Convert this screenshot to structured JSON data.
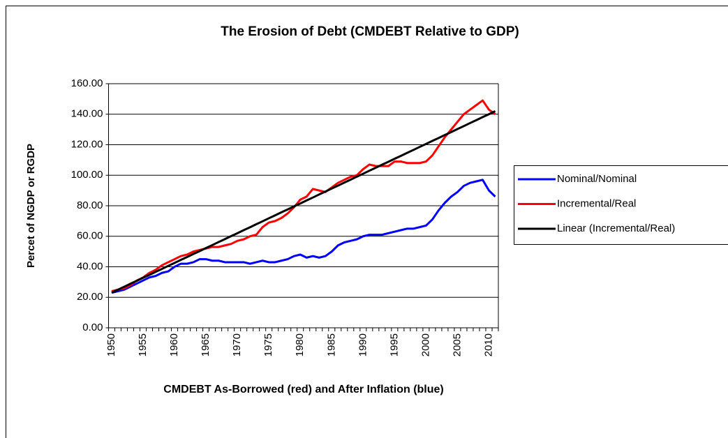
{
  "chart_data": {
    "type": "line",
    "title": "The Erosion of Debt (CMDEBT Relative to GDP)",
    "x_label": "CMDEBT As-Borrowed (red) and After Inflation (blue)",
    "y_label": "Percet of NGDP or RGDP",
    "categories": [
      "1950",
      null,
      null,
      null,
      null,
      "1955",
      null,
      null,
      null,
      null,
      "1960",
      null,
      null,
      null,
      null,
      "1965",
      null,
      null,
      null,
      null,
      "1970",
      null,
      null,
      null,
      null,
      "1975",
      null,
      null,
      null,
      null,
      "1980",
      null,
      null,
      null,
      null,
      "1985",
      null,
      null,
      null,
      null,
      "1990",
      null,
      null,
      null,
      null,
      "1995",
      null,
      null,
      null,
      null,
      "2000",
      null,
      null,
      null,
      null,
      "2005",
      null,
      null,
      null,
      null,
      "2010",
      null
    ],
    "ylim": [
      0,
      160
    ],
    "yticks": [
      {
        "value": 0,
        "label": "0.00"
      },
      {
        "value": 20,
        "label": "20.00"
      },
      {
        "value": 40,
        "label": "40.00"
      },
      {
        "value": 60,
        "label": "60.00"
      },
      {
        "value": 80,
        "label": "80.00"
      },
      {
        "value": 100,
        "label": "100.00"
      },
      {
        "value": 120,
        "label": "120.00"
      },
      {
        "value": 140,
        "label": "140.00"
      },
      {
        "value": 160,
        "label": "160.00"
      }
    ],
    "grid": true,
    "legend": "right",
    "series": [
      {
        "name": "Nominal/Nominal",
        "color": "#0000ff",
        "values": [
          23,
          24,
          25,
          27,
          29,
          31,
          33,
          34,
          36,
          37,
          40,
          42,
          42,
          43,
          45,
          45,
          44,
          44,
          43,
          43,
          43,
          43,
          42,
          43,
          44,
          43,
          43,
          44,
          45,
          47,
          48,
          46,
          47,
          46,
          47,
          50,
          54,
          56,
          57,
          58,
          60,
          61,
          61,
          61,
          62,
          63,
          64,
          65,
          65,
          66,
          67,
          71,
          77,
          82,
          86,
          89,
          93,
          95,
          96,
          97,
          90,
          86
        ]
      },
      {
        "name": "Incremental/Real",
        "color": "#ff0000",
        "values": [
          24,
          25,
          26,
          28,
          31,
          33,
          36,
          38,
          41,
          43,
          45,
          47,
          48,
          50,
          51,
          52,
          53,
          53,
          54,
          55,
          57,
          58,
          60,
          61,
          66,
          69,
          70,
          72,
          75,
          79,
          84,
          86,
          91,
          90,
          89,
          92,
          95,
          97,
          99,
          100,
          104,
          107,
          106,
          106,
          106,
          109,
          109,
          108,
          108,
          108,
          109,
          113,
          119,
          125,
          130,
          135,
          140,
          143,
          146,
          149,
          143,
          140
        ]
      },
      {
        "name": "Linear (Incremental/Real)",
        "color": "#000000",
        "values": [
          23.0,
          25.0,
          26.9,
          28.9,
          30.8,
          32.8,
          34.7,
          36.7,
          38.6,
          40.6,
          42.5,
          44.5,
          46.4,
          48.4,
          50.3,
          52.3,
          54.2,
          56.2,
          58.1,
          60.1,
          62.0,
          64.0,
          65.9,
          67.9,
          69.8,
          71.8,
          73.7,
          75.7,
          77.6,
          79.6,
          81.5,
          83.5,
          85.4,
          87.4,
          89.3,
          91.3,
          93.2,
          95.2,
          97.1,
          99.1,
          101.0,
          103.0,
          104.9,
          106.9,
          108.8,
          110.8,
          112.7,
          114.7,
          116.6,
          118.6,
          120.5,
          122.5,
          124.4,
          126.4,
          128.3,
          130.3,
          132.2,
          134.2,
          136.1,
          138.1,
          140.0,
          142.0
        ]
      }
    ]
  }
}
